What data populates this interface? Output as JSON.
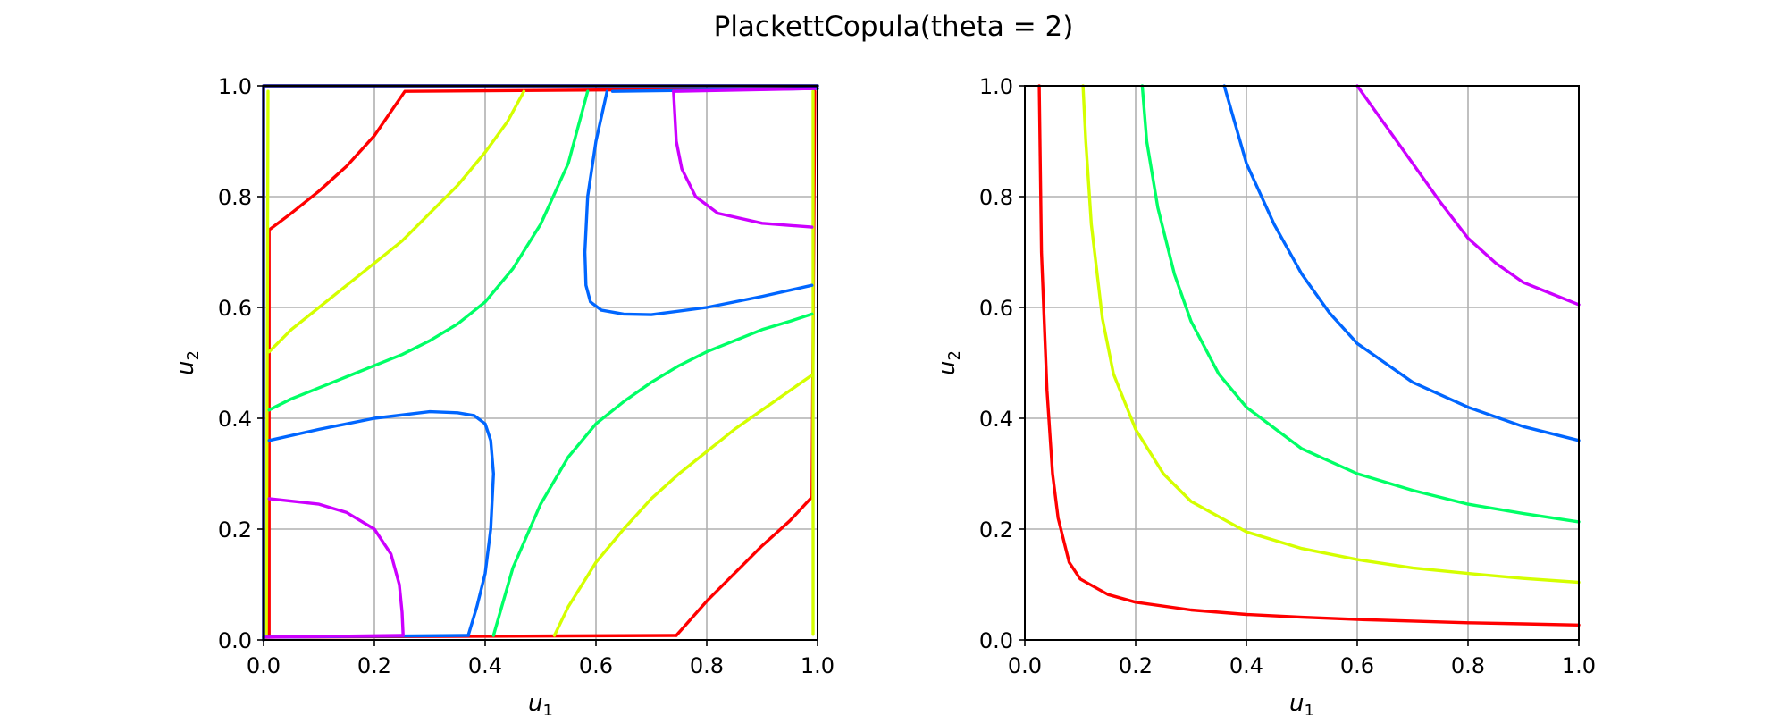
{
  "figure": {
    "title": "PlackettCopula(theta = 2)"
  },
  "chart_data": [
    {
      "type": "line",
      "panel": "left",
      "xlabel": "u1",
      "ylabel": "u2",
      "xlim": [
        0,
        1
      ],
      "ylim": [
        0,
        1
      ],
      "xticks": [
        "0.0",
        "0.2",
        "0.4",
        "0.6",
        "0.8",
        "1.0"
      ],
      "yticks": [
        "0.0",
        "0.2",
        "0.4",
        "0.6",
        "0.8",
        "1.0"
      ],
      "grid": true,
      "series": [
        {
          "color": "#ff0000",
          "segments": [
            [
              [
                0.01,
                0.005
              ],
              [
                0.01,
                0.74
              ],
              [
                0.05,
                0.77
              ],
              [
                0.1,
                0.81
              ],
              [
                0.15,
                0.855
              ],
              [
                0.2,
                0.91
              ],
              [
                0.255,
                0.99
              ],
              [
                1.0,
                0.995
              ]
            ],
            [
              [
                0.745,
                0.008
              ],
              [
                0.8,
                0.07
              ],
              [
                0.85,
                0.12
              ],
              [
                0.9,
                0.17
              ],
              [
                0.95,
                0.215
              ],
              [
                0.99,
                0.258
              ],
              [
                0.995,
                0.99
              ]
            ],
            [
              [
                0.005,
                0.005
              ],
              [
                0.745,
                0.008
              ]
            ]
          ]
        },
        {
          "color": "#d4ff00",
          "segments": [
            [
              [
                0.01,
                0.52
              ],
              [
                0.05,
                0.56
              ],
              [
                0.1,
                0.6
              ],
              [
                0.15,
                0.64
              ],
              [
                0.2,
                0.68
              ],
              [
                0.25,
                0.72
              ],
              [
                0.3,
                0.77
              ],
              [
                0.35,
                0.82
              ],
              [
                0.4,
                0.88
              ],
              [
                0.44,
                0.935
              ],
              [
                0.47,
                0.99
              ]
            ],
            [
              [
                0.525,
                0.008
              ],
              [
                0.55,
                0.06
              ],
              [
                0.6,
                0.14
              ],
              [
                0.65,
                0.2
              ],
              [
                0.7,
                0.255
              ],
              [
                0.75,
                0.3
              ],
              [
                0.8,
                0.34
              ],
              [
                0.85,
                0.38
              ],
              [
                0.9,
                0.415
              ],
              [
                0.95,
                0.45
              ],
              [
                0.99,
                0.478
              ]
            ],
            [
              [
                0.005,
                0.004
              ],
              [
                0.008,
                0.99
              ]
            ],
            [
              [
                0.992,
                0.01
              ],
              [
                0.992,
                0.99
              ]
            ]
          ]
        },
        {
          "color": "#00ff66",
          "segments": [
            [
              [
                0.01,
                0.415
              ],
              [
                0.05,
                0.435
              ],
              [
                0.1,
                0.455
              ],
              [
                0.15,
                0.475
              ],
              [
                0.2,
                0.495
              ],
              [
                0.25,
                0.515
              ],
              [
                0.3,
                0.54
              ],
              [
                0.35,
                0.57
              ],
              [
                0.4,
                0.61
              ],
              [
                0.45,
                0.67
              ],
              [
                0.5,
                0.75
              ],
              [
                0.55,
                0.86
              ],
              [
                0.585,
                0.99
              ]
            ],
            [
              [
                0.415,
                0.008
              ],
              [
                0.45,
                0.13
              ],
              [
                0.5,
                0.245
              ],
              [
                0.55,
                0.33
              ],
              [
                0.6,
                0.39
              ],
              [
                0.65,
                0.43
              ],
              [
                0.7,
                0.465
              ],
              [
                0.75,
                0.495
              ],
              [
                0.8,
                0.52
              ],
              [
                0.85,
                0.54
              ],
              [
                0.9,
                0.56
              ],
              [
                0.95,
                0.575
              ],
              [
                0.99,
                0.588
              ]
            ]
          ]
        },
        {
          "color": "#0066ff",
          "segments": [
            [
              [
                0.01,
                0.36
              ],
              [
                0.1,
                0.38
              ],
              [
                0.2,
                0.4
              ],
              [
                0.3,
                0.412
              ],
              [
                0.35,
                0.41
              ],
              [
                0.38,
                0.405
              ],
              [
                0.4,
                0.39
              ],
              [
                0.41,
                0.36
              ],
              [
                0.415,
                0.3
              ],
              [
                0.41,
                0.2
              ],
              [
                0.4,
                0.12
              ],
              [
                0.385,
                0.06
              ],
              [
                0.37,
                0.01
              ]
            ],
            [
              [
                0.0,
                0.005
              ],
              [
                0.37,
                0.008
              ]
            ],
            [
              [
                0.99,
                0.64
              ],
              [
                0.9,
                0.62
              ],
              [
                0.8,
                0.6
              ],
              [
                0.7,
                0.587
              ],
              [
                0.65,
                0.588
              ],
              [
                0.61,
                0.595
              ],
              [
                0.59,
                0.61
              ],
              [
                0.582,
                0.64
              ],
              [
                0.58,
                0.7
              ],
              [
                0.585,
                0.8
              ],
              [
                0.6,
                0.9
              ],
              [
                0.62,
                0.99
              ]
            ],
            [
              [
                0.63,
                0.99
              ],
              [
                1.0,
                0.995
              ]
            ]
          ]
        },
        {
          "color": "#cc00ff",
          "segments": [
            [
              [
                0.01,
                0.255
              ],
              [
                0.1,
                0.245
              ],
              [
                0.15,
                0.23
              ],
              [
                0.2,
                0.2
              ],
              [
                0.23,
                0.155
              ],
              [
                0.245,
                0.1
              ],
              [
                0.25,
                0.05
              ],
              [
                0.252,
                0.008
              ]
            ],
            [
              [
                0.99,
                0.745
              ],
              [
                0.9,
                0.752
              ],
              [
                0.82,
                0.77
              ],
              [
                0.78,
                0.8
              ],
              [
                0.755,
                0.85
              ],
              [
                0.745,
                0.9
              ],
              [
                0.74,
                0.99
              ]
            ],
            [
              [
                0.005,
                0.005
              ],
              [
                0.25,
                0.008
              ]
            ],
            [
              [
                0.74,
                0.99
              ],
              [
                0.995,
                0.995
              ]
            ]
          ]
        },
        {
          "color": "#000080",
          "segments": [
            [
              [
                0.0,
                0.0
              ],
              [
                0.0,
                1.0
              ],
              [
                1.0,
                1.0
              ]
            ]
          ]
        }
      ]
    },
    {
      "type": "line",
      "panel": "right",
      "xlabel": "u1",
      "ylabel": "u2",
      "xlim": [
        0,
        1
      ],
      "ylim": [
        0,
        1
      ],
      "xticks": [
        "0.0",
        "0.2",
        "0.4",
        "0.6",
        "0.8",
        "1.0"
      ],
      "yticks": [
        "0.0",
        "0.2",
        "0.4",
        "0.6",
        "0.8",
        "1.0"
      ],
      "grid": true,
      "series": [
        {
          "color": "#ff0000",
          "segments": [
            [
              [
                0.026,
                1.0
              ],
              [
                0.03,
                0.7
              ],
              [
                0.04,
                0.45
              ],
              [
                0.05,
                0.3
              ],
              [
                0.06,
                0.22
              ],
              [
                0.08,
                0.14
              ],
              [
                0.1,
                0.11
              ],
              [
                0.15,
                0.082
              ],
              [
                0.2,
                0.068
              ],
              [
                0.3,
                0.054
              ],
              [
                0.4,
                0.046
              ],
              [
                0.5,
                0.041
              ],
              [
                0.6,
                0.037
              ],
              [
                0.7,
                0.034
              ],
              [
                0.8,
                0.031
              ],
              [
                0.9,
                0.029
              ],
              [
                1.0,
                0.027
              ]
            ]
          ]
        },
        {
          "color": "#d4ff00",
          "segments": [
            [
              [
                0.105,
                1.0
              ],
              [
                0.11,
                0.9
              ],
              [
                0.12,
                0.75
              ],
              [
                0.14,
                0.58
              ],
              [
                0.16,
                0.48
              ],
              [
                0.2,
                0.38
              ],
              [
                0.25,
                0.3
              ],
              [
                0.3,
                0.25
              ],
              [
                0.4,
                0.195
              ],
              [
                0.5,
                0.165
              ],
              [
                0.6,
                0.145
              ],
              [
                0.7,
                0.13
              ],
              [
                0.8,
                0.12
              ],
              [
                0.9,
                0.111
              ],
              [
                1.0,
                0.104
              ]
            ]
          ]
        },
        {
          "color": "#00ff66",
          "segments": [
            [
              [
                0.212,
                1.0
              ],
              [
                0.22,
                0.9
              ],
              [
                0.24,
                0.78
              ],
              [
                0.27,
                0.66
              ],
              [
                0.3,
                0.575
              ],
              [
                0.35,
                0.48
              ],
              [
                0.4,
                0.42
              ],
              [
                0.5,
                0.345
              ],
              [
                0.6,
                0.3
              ],
              [
                0.7,
                0.27
              ],
              [
                0.8,
                0.245
              ],
              [
                0.9,
                0.228
              ],
              [
                1.0,
                0.213
              ]
            ]
          ]
        },
        {
          "color": "#0066ff",
          "segments": [
            [
              [
                0.36,
                1.0
              ],
              [
                0.38,
                0.93
              ],
              [
                0.4,
                0.86
              ],
              [
                0.45,
                0.75
              ],
              [
                0.5,
                0.66
              ],
              [
                0.55,
                0.59
              ],
              [
                0.6,
                0.535
              ],
              [
                0.65,
                0.5
              ],
              [
                0.7,
                0.465
              ],
              [
                0.8,
                0.42
              ],
              [
                0.9,
                0.385
              ],
              [
                1.0,
                0.36
              ]
            ]
          ]
        },
        {
          "color": "#cc00ff",
          "segments": [
            [
              [
                0.6,
                1.0
              ],
              [
                0.65,
                0.93
              ],
              [
                0.7,
                0.86
              ],
              [
                0.75,
                0.79
              ],
              [
                0.8,
                0.725
              ],
              [
                0.85,
                0.68
              ],
              [
                0.9,
                0.645
              ],
              [
                0.95,
                0.625
              ],
              [
                1.0,
                0.605
              ]
            ]
          ]
        }
      ]
    }
  ]
}
